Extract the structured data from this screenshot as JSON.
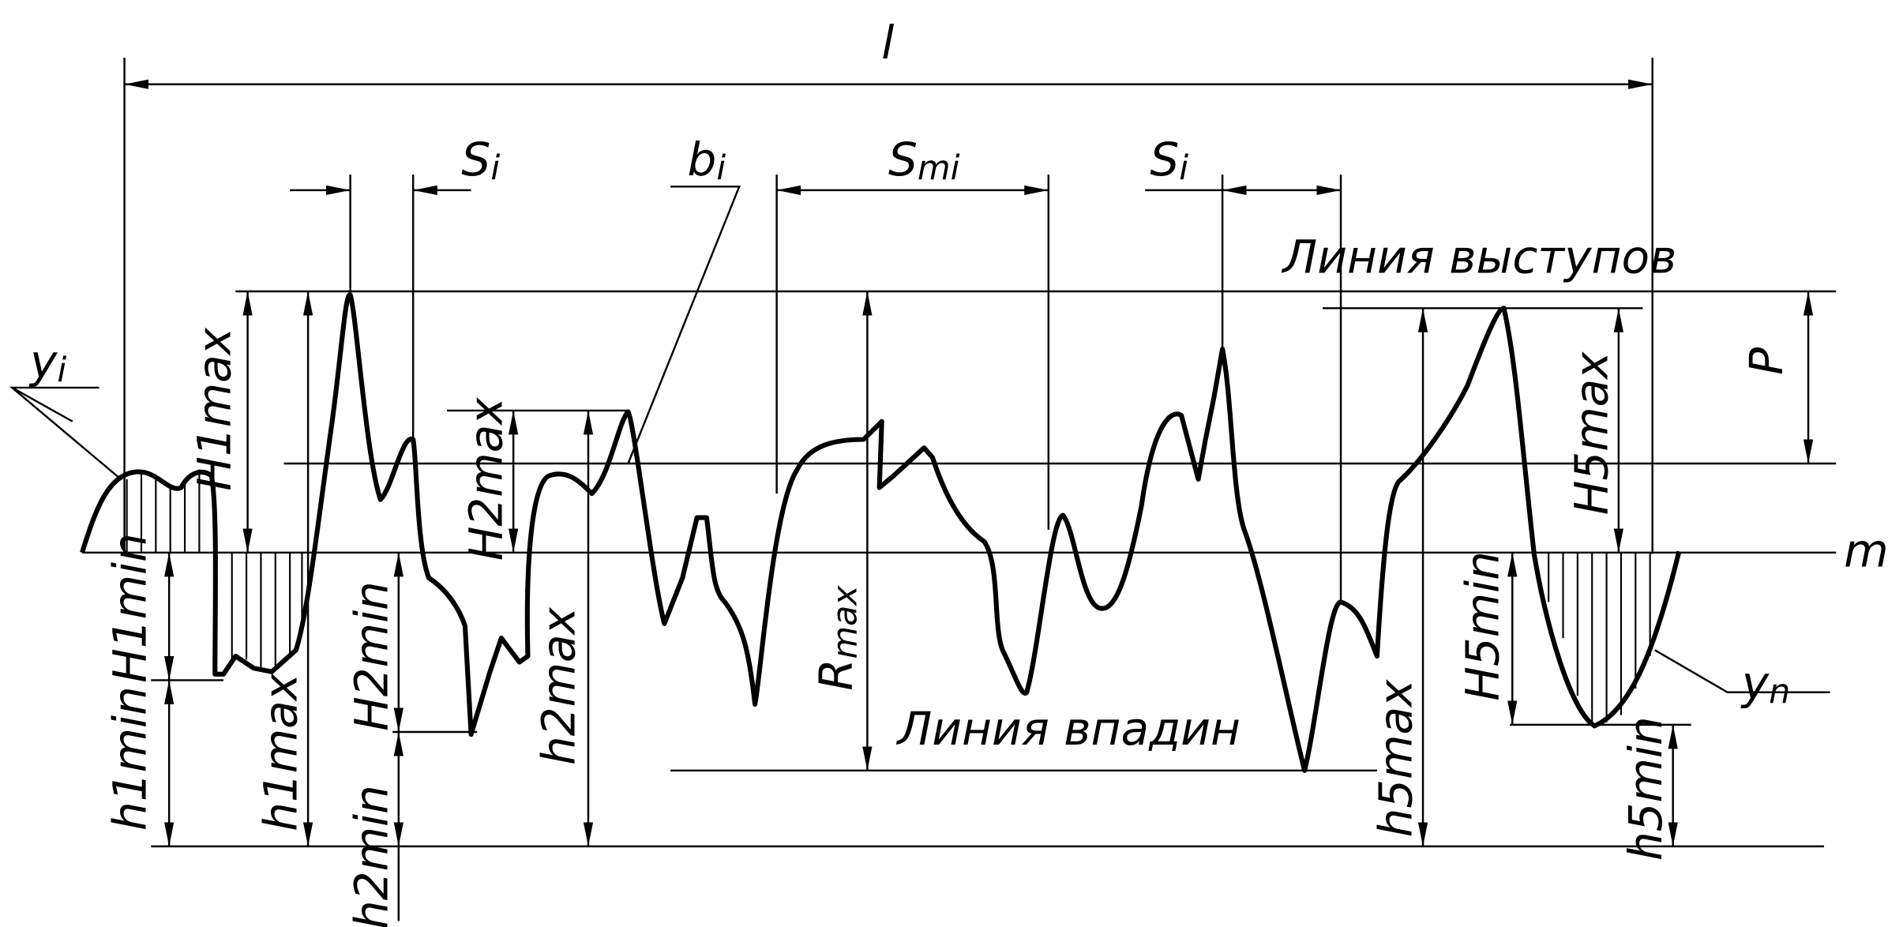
{
  "labels": {
    "length": "l",
    "step_left": {
      "base": "S",
      "sub": "i"
    },
    "peak_width": {
      "base": "b",
      "sub": "i"
    },
    "mean_step": {
      "base": "S",
      "sub": "mi"
    },
    "step_right": {
      "base": "S",
      "sub": "i"
    },
    "peak_line": "Линия выступов",
    "valley_line": "Линия впадин",
    "ordinate_i": {
      "base": "y",
      "sub": "i"
    },
    "ordinate_n": {
      "base": "y",
      "sub": "n"
    },
    "mean_line": "m",
    "rmax": {
      "base": "R",
      "sub": "max"
    },
    "p": "P",
    "H1max": "H1max",
    "H2max": "H2max",
    "H5max": "H5max",
    "H1min": "H1min",
    "H2min": "H2min",
    "H5min": "H5min",
    "h1min": "h1min",
    "h1max": "h1max",
    "h2min": "h2min",
    "h2max": "h2max",
    "h5min": "h5min",
    "h5max": "h5max"
  }
}
